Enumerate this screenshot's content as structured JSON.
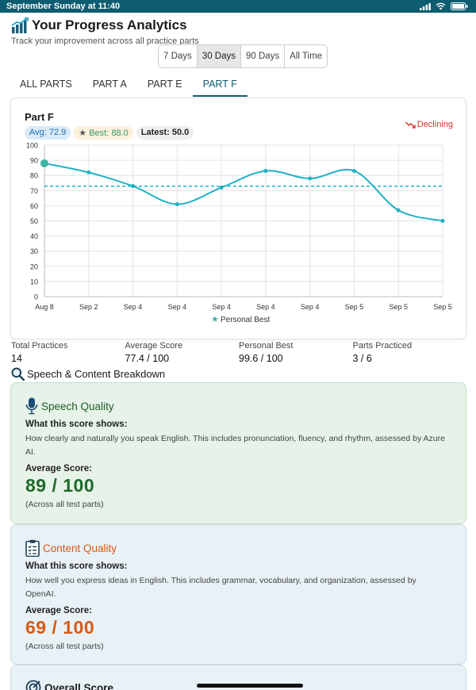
{
  "status_bar": {
    "datetime": "September Sunday at 11:40"
  },
  "header": {
    "title": "Your Progress Analytics",
    "subtitle": "Track your improvement across all practice parts"
  },
  "ranges": [
    "7 Days",
    "30 Days",
    "90 Days",
    "All Time"
  ],
  "selected_range": "30 Days",
  "tabs": [
    "ALL PARTS",
    "PART A",
    "PART E",
    "PART F"
  ],
  "selected_tab": "PART F",
  "chart": {
    "title": "Part F",
    "avg_chip": "Avg: 72.9",
    "best_chip": "Best: 88.0",
    "latest_chip": "Latest: 50.0",
    "trend": "Declining",
    "legend": "Personal Best"
  },
  "chart_data": {
    "type": "line",
    "categories": [
      "Aug 8",
      "Sep 2",
      "Sep 4",
      "Sep 4",
      "Sep 4",
      "Sep 4",
      "Sep 4",
      "Sep 5",
      "Sep 5",
      "Sep 5"
    ],
    "values": [
      88,
      82,
      73,
      61,
      72,
      83,
      78,
      83,
      57,
      50
    ],
    "average": 72.9,
    "personal_best_index": 0,
    "ylim": [
      0,
      100
    ],
    "yticks": [
      0,
      10,
      20,
      30,
      40,
      50,
      60,
      70,
      80,
      90,
      100
    ],
    "grid": true,
    "legend_position": "bottom",
    "line_color": "#1fb1c4"
  },
  "stats": [
    {
      "label": "Total Practices",
      "value": "14"
    },
    {
      "label": "Average Score",
      "value": "77.4 / 100"
    },
    {
      "label": "Personal Best",
      "value": "99.6 / 100"
    },
    {
      "label": "Parts Practiced",
      "value": "3 / 6"
    }
  ],
  "breakdown_title": "Speech & Content Breakdown",
  "speech": {
    "title": "Speech Quality",
    "heading": "What this score shows:",
    "description": "How clearly and naturally you speak English. This includes pronunciation, fluency, and rhythm, assessed by Azure AI.",
    "avg_label": "Average Score:",
    "score": "89 / 100",
    "note": "(Across all test parts)"
  },
  "content": {
    "title": "Content Quality",
    "heading": "What this score shows:",
    "description": "How well you express ideas in English. This includes grammar, vocabulary, and organization, assessed by OpenAI.",
    "avg_label": "Average Score:",
    "score": "69 / 100",
    "note": "(Across all test parts)"
  },
  "overall": {
    "title": "Overall Score"
  },
  "colors": {
    "brand": "#0d5c70",
    "line": "#1fb1c4",
    "declining": "#d93025",
    "speech": "#1e6a2a",
    "content": "#d85a17"
  }
}
